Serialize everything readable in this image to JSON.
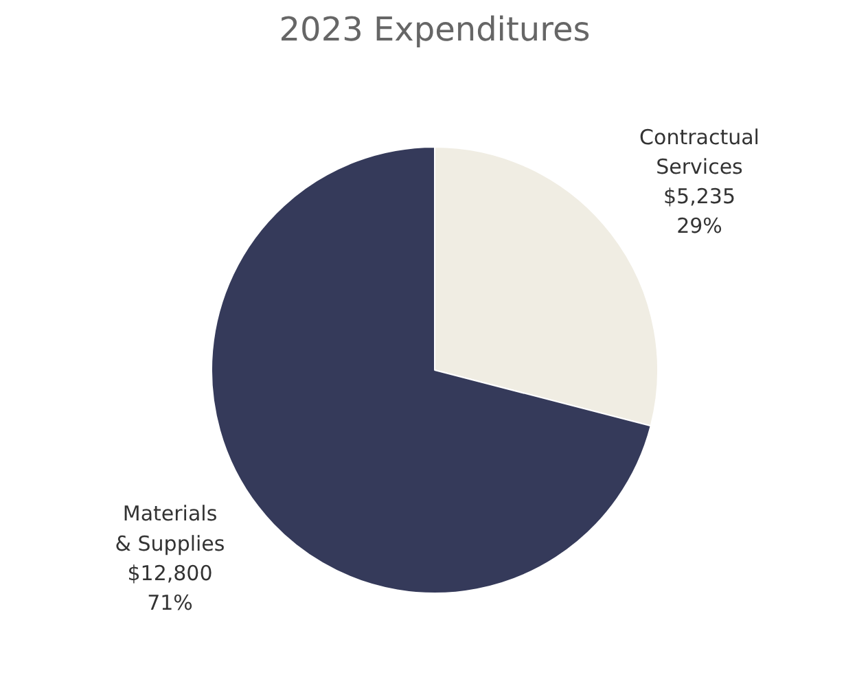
{
  "chart_data": {
    "type": "pie",
    "title": "2023 Expenditures",
    "categories": [
      "Contractual Services",
      "Materials & Supplies"
    ],
    "values": [
      5235,
      12800
    ],
    "colors": [
      "#f0ede3",
      "#353a5a"
    ],
    "value_labels": [
      "$5,235\n29%",
      "$12,800\n71%"
    ],
    "legend": false
  }
}
